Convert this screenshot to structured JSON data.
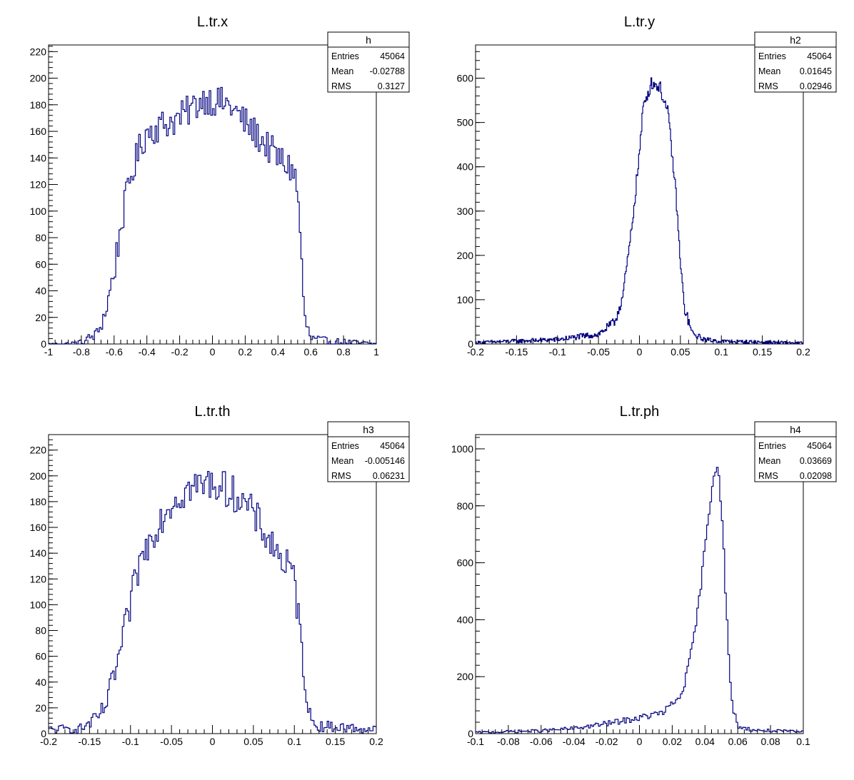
{
  "chart_data": [
    {
      "type": "histogram",
      "title": "L.tr.x",
      "stats": {
        "name": "h",
        "entries_label": "Entries",
        "entries": "45064",
        "mean_label": "Mean",
        "mean": "-0.02788",
        "rms_label": "RMS",
        "rms": "0.3127"
      },
      "xlim": [
        -1,
        1
      ],
      "ylim": [
        0,
        225
      ],
      "xticks": [
        -1,
        -0.8,
        -0.6,
        -0.4,
        -0.2,
        0,
        0.2,
        0.4,
        0.6,
        0.8,
        1
      ],
      "xtick_labels": [
        "-1",
        "-0.8",
        "-0.6",
        "-0.4",
        "-0.2",
        "0",
        "0.2",
        "0.4",
        "0.6",
        "0.8",
        "1"
      ],
      "yticks": [
        0,
        20,
        40,
        60,
        80,
        100,
        120,
        140,
        160,
        180,
        200,
        220
      ],
      "ytick_labels": [
        "0",
        "20",
        "40",
        "60",
        "80",
        "100",
        "120",
        "140",
        "160",
        "180",
        "200",
        "220"
      ],
      "bins": 200,
      "profile": [
        [
          -1,
          0
        ],
        [
          -0.9,
          0
        ],
        [
          -0.8,
          1
        ],
        [
          -0.7,
          8
        ],
        [
          -0.65,
          25
        ],
        [
          -0.6,
          55
        ],
        [
          -0.55,
          95
        ],
        [
          -0.5,
          125
        ],
        [
          -0.45,
          145
        ],
        [
          -0.4,
          160
        ],
        [
          -0.2,
          170
        ],
        [
          -0.05,
          185
        ],
        [
          0.1,
          180
        ],
        [
          0.25,
          160
        ],
        [
          0.4,
          140
        ],
        [
          0.5,
          130
        ],
        [
          0.53,
          100
        ],
        [
          0.56,
          20
        ],
        [
          0.6,
          4
        ],
        [
          0.7,
          2
        ],
        [
          1,
          0
        ]
      ],
      "noise": 12
    },
    {
      "type": "histogram",
      "title": "L.tr.y",
      "stats": {
        "name": "h2",
        "entries_label": "Entries",
        "entries": "45064",
        "mean_label": "Mean",
        "mean": "0.01645",
        "rms_label": "RMS",
        "rms": "0.02946"
      },
      "xlim": [
        -0.2,
        0.2
      ],
      "ylim": [
        0,
        675
      ],
      "xticks": [
        -0.2,
        -0.15,
        -0.1,
        -0.05,
        0,
        0.05,
        0.1,
        0.15,
        0.2
      ],
      "xtick_labels": [
        "-0.2",
        "-0.15",
        "-0.1",
        "-0.05",
        "0",
        "0.05",
        "0.1",
        "0.15",
        "0.2"
      ],
      "yticks": [
        0,
        100,
        200,
        300,
        400,
        500,
        600
      ],
      "ytick_labels": [
        "0",
        "100",
        "200",
        "300",
        "400",
        "500",
        "600"
      ],
      "bins": 400,
      "profile": [
        [
          -0.2,
          3
        ],
        [
          -0.1,
          10
        ],
        [
          -0.05,
          22
        ],
        [
          -0.03,
          50
        ],
        [
          -0.02,
          110
        ],
        [
          -0.01,
          250
        ],
        [
          0,
          430
        ],
        [
          0.005,
          540
        ],
        [
          0.015,
          590
        ],
        [
          0.025,
          580
        ],
        [
          0.035,
          520
        ],
        [
          0.045,
          330
        ],
        [
          0.05,
          180
        ],
        [
          0.055,
          80
        ],
        [
          0.065,
          22
        ],
        [
          0.08,
          10
        ],
        [
          0.1,
          6
        ],
        [
          0.2,
          2
        ]
      ],
      "noise": 15
    },
    {
      "type": "histogram",
      "title": "L.tr.th",
      "stats": {
        "name": "h3",
        "entries_label": "Entries",
        "entries": "45064",
        "mean_label": "Mean",
        "mean": "-0.005146",
        "rms_label": "RMS",
        "rms": "0.06231"
      },
      "xlim": [
        -0.2,
        0.2
      ],
      "ylim": [
        0,
        232
      ],
      "xticks": [
        -0.2,
        -0.15,
        -0.1,
        -0.05,
        0,
        0.05,
        0.1,
        0.15,
        0.2
      ],
      "xtick_labels": [
        "-0.2",
        "-0.15",
        "-0.1",
        "-0.05",
        "0",
        "0.05",
        "0.1",
        "0.15",
        "0.2"
      ],
      "yticks": [
        0,
        20,
        40,
        60,
        80,
        100,
        120,
        140,
        160,
        180,
        200,
        220
      ],
      "ytick_labels": [
        "0",
        "20",
        "40",
        "60",
        "80",
        "100",
        "120",
        "140",
        "160",
        "180",
        "200",
        "220"
      ],
      "bins": 200,
      "profile": [
        [
          -0.2,
          3
        ],
        [
          -0.16,
          4
        ],
        [
          -0.14,
          12
        ],
        [
          -0.13,
          22
        ],
        [
          -0.12,
          45
        ],
        [
          -0.11,
          70
        ],
        [
          -0.1,
          100
        ],
        [
          -0.09,
          130
        ],
        [
          -0.07,
          160
        ],
        [
          -0.05,
          180
        ],
        [
          -0.03,
          190
        ],
        [
          0,
          195
        ],
        [
          0.03,
          185
        ],
        [
          0.05,
          170
        ],
        [
          0.07,
          150
        ],
        [
          0.1,
          120
        ],
        [
          0.105,
          90
        ],
        [
          0.115,
          30
        ],
        [
          0.12,
          10
        ],
        [
          0.13,
          6
        ],
        [
          0.2,
          3
        ]
      ],
      "noise": 14
    },
    {
      "type": "histogram",
      "title": "L.tr.ph",
      "stats": {
        "name": "h4",
        "entries_label": "Entries",
        "entries": "45064",
        "mean_label": "Mean",
        "mean": "0.03669",
        "rms_label": "RMS",
        "rms": "0.02098"
      },
      "xlim": [
        -0.1,
        0.1
      ],
      "ylim": [
        0,
        1050
      ],
      "xticks": [
        -0.1,
        -0.08,
        -0.06,
        -0.04,
        -0.02,
        0,
        0.02,
        0.04,
        0.06,
        0.08,
        0.1
      ],
      "xtick_labels": [
        "-0.1",
        "-0.08",
        "-0.06",
        "-0.04",
        "-0.02",
        "0",
        "0.02",
        "0.04",
        "0.06",
        "0.08",
        "0.1"
      ],
      "yticks": [
        0,
        200,
        400,
        600,
        800,
        1000
      ],
      "ytick_labels": [
        "0",
        "200",
        "400",
        "600",
        "800",
        "1000"
      ],
      "bins": 200,
      "profile": [
        [
          -0.1,
          4
        ],
        [
          -0.06,
          10
        ],
        [
          -0.04,
          18
        ],
        [
          -0.02,
          35
        ],
        [
          0,
          55
        ],
        [
          0.015,
          75
        ],
        [
          0.025,
          130
        ],
        [
          0.03,
          230
        ],
        [
          0.035,
          400
        ],
        [
          0.04,
          650
        ],
        [
          0.045,
          900
        ],
        [
          0.048,
          960
        ],
        [
          0.051,
          700
        ],
        [
          0.054,
          320
        ],
        [
          0.056,
          120
        ],
        [
          0.06,
          25
        ],
        [
          0.07,
          12
        ],
        [
          0.1,
          6
        ]
      ],
      "noise": 18
    }
  ]
}
